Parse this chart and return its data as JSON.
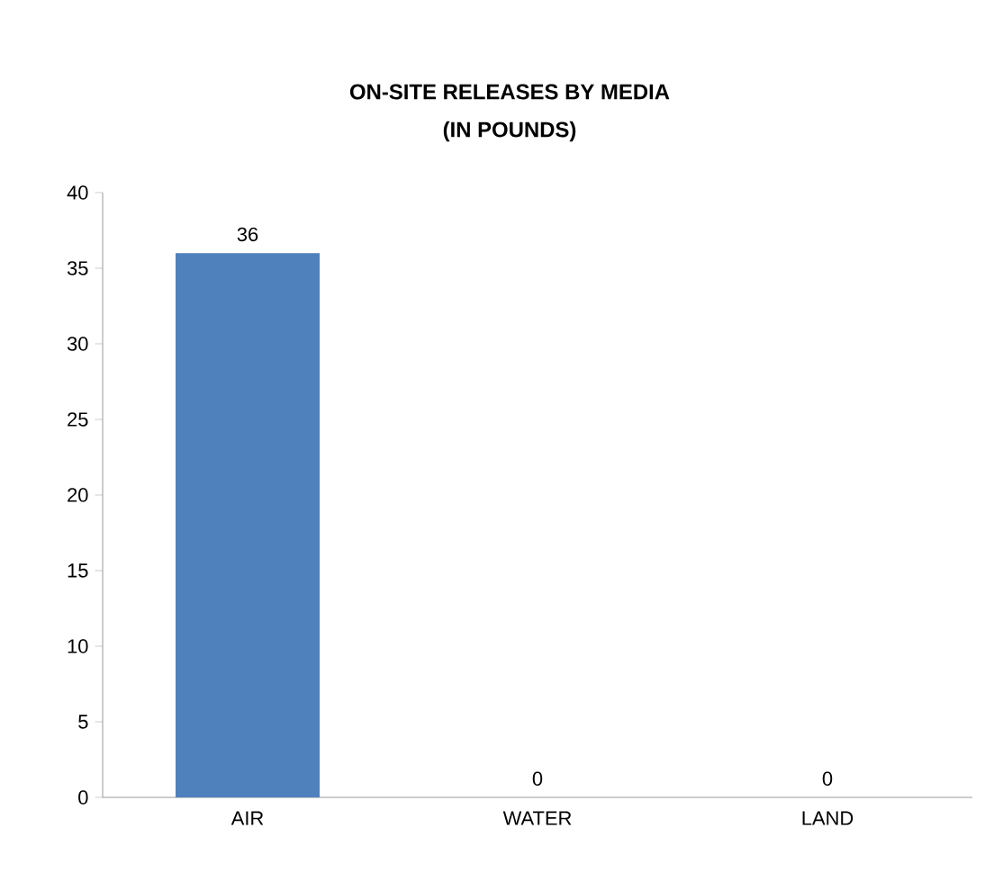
{
  "chart_data": {
    "type": "bar",
    "title": "ON-SITE RELEASES BY MEDIA",
    "subtitle": "(IN POUNDS)",
    "categories": [
      "AIR",
      "WATER",
      "LAND"
    ],
    "values": [
      36,
      0,
      0
    ],
    "color": "#4f81bd",
    "ylim": [
      0,
      40
    ],
    "yticks": [
      0,
      5,
      10,
      15,
      20,
      25,
      30,
      35,
      40
    ],
    "grid": false,
    "data_labels": true
  }
}
